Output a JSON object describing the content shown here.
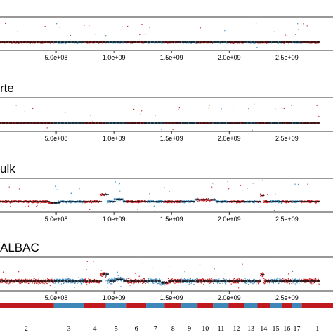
{
  "chart_data": {
    "type": "scatter",
    "x_ticks": [
      "5.0e+08",
      "1.0e+09",
      "1.5e+09",
      "2.0e+09",
      "2.5e+09"
    ],
    "x_tick_values": [
      500000000,
      1000000000,
      1500000000,
      2000000000,
      2500000000
    ],
    "xlim": [
      0,
      2900000000
    ],
    "series_colors": {
      "red": "#c0191e",
      "blue": "#3f87b8",
      "segment": "#111111"
    },
    "panels": [
      {
        "title": "",
        "noise": 0.12,
        "cnv": []
      },
      {
        "title": "rte",
        "noise": 0.13,
        "cnv": []
      },
      {
        "title": "ulk",
        "noise": 0.22,
        "cnv": [
          [
            880000000,
            940000000,
            1.1
          ],
          [
            430000000,
            520000000,
            -0.2
          ],
          [
            1000000000,
            1080000000,
            0.35
          ],
          [
            1700000000,
            1880000000,
            0.3
          ],
          [
            2270000000,
            2300000000,
            1.0
          ]
        ]
      },
      {
        "title": "ALBAC",
        "noise": 0.45,
        "cnv": [
          [
            880000000,
            940000000,
            1.1
          ],
          [
            1000000000,
            1080000000,
            0.3
          ],
          [
            1400000000,
            1470000000,
            -0.3
          ],
          [
            2270000000,
            2300000000,
            1.0
          ]
        ]
      }
    ],
    "chromosomes": [
      {
        "label": "2",
        "start": 0,
        "end": 480000000
      },
      {
        "label": "3",
        "start": 480000000,
        "end": 740000000
      },
      {
        "label": "4",
        "start": 740000000,
        "end": 930000000
      },
      {
        "label": "5",
        "start": 930000000,
        "end": 1110000000
      },
      {
        "label": "6",
        "start": 1110000000,
        "end": 1280000000
      },
      {
        "label": "7",
        "start": 1280000000,
        "end": 1440000000
      },
      {
        "label": "8",
        "start": 1440000000,
        "end": 1585000000
      },
      {
        "label": "9",
        "start": 1585000000,
        "end": 1725000000
      },
      {
        "label": "10",
        "start": 1725000000,
        "end": 1860000000
      },
      {
        "label": "11",
        "start": 1860000000,
        "end": 1995000000
      },
      {
        "label": "12",
        "start": 1995000000,
        "end": 2130000000
      },
      {
        "label": "13",
        "start": 2130000000,
        "end": 2245000000
      },
      {
        "label": "14",
        "start": 2245000000,
        "end": 2352000000
      },
      {
        "label": "15",
        "start": 2352000000,
        "end": 2455000000
      },
      {
        "label": "16",
        "start": 2455000000,
        "end": 2545000000
      },
      {
        "label": "17",
        "start": 2545000000,
        "end": 2628000000
      },
      {
        "label": "1",
        "start": 2628000000,
        "end": 2900000000
      }
    ]
  }
}
